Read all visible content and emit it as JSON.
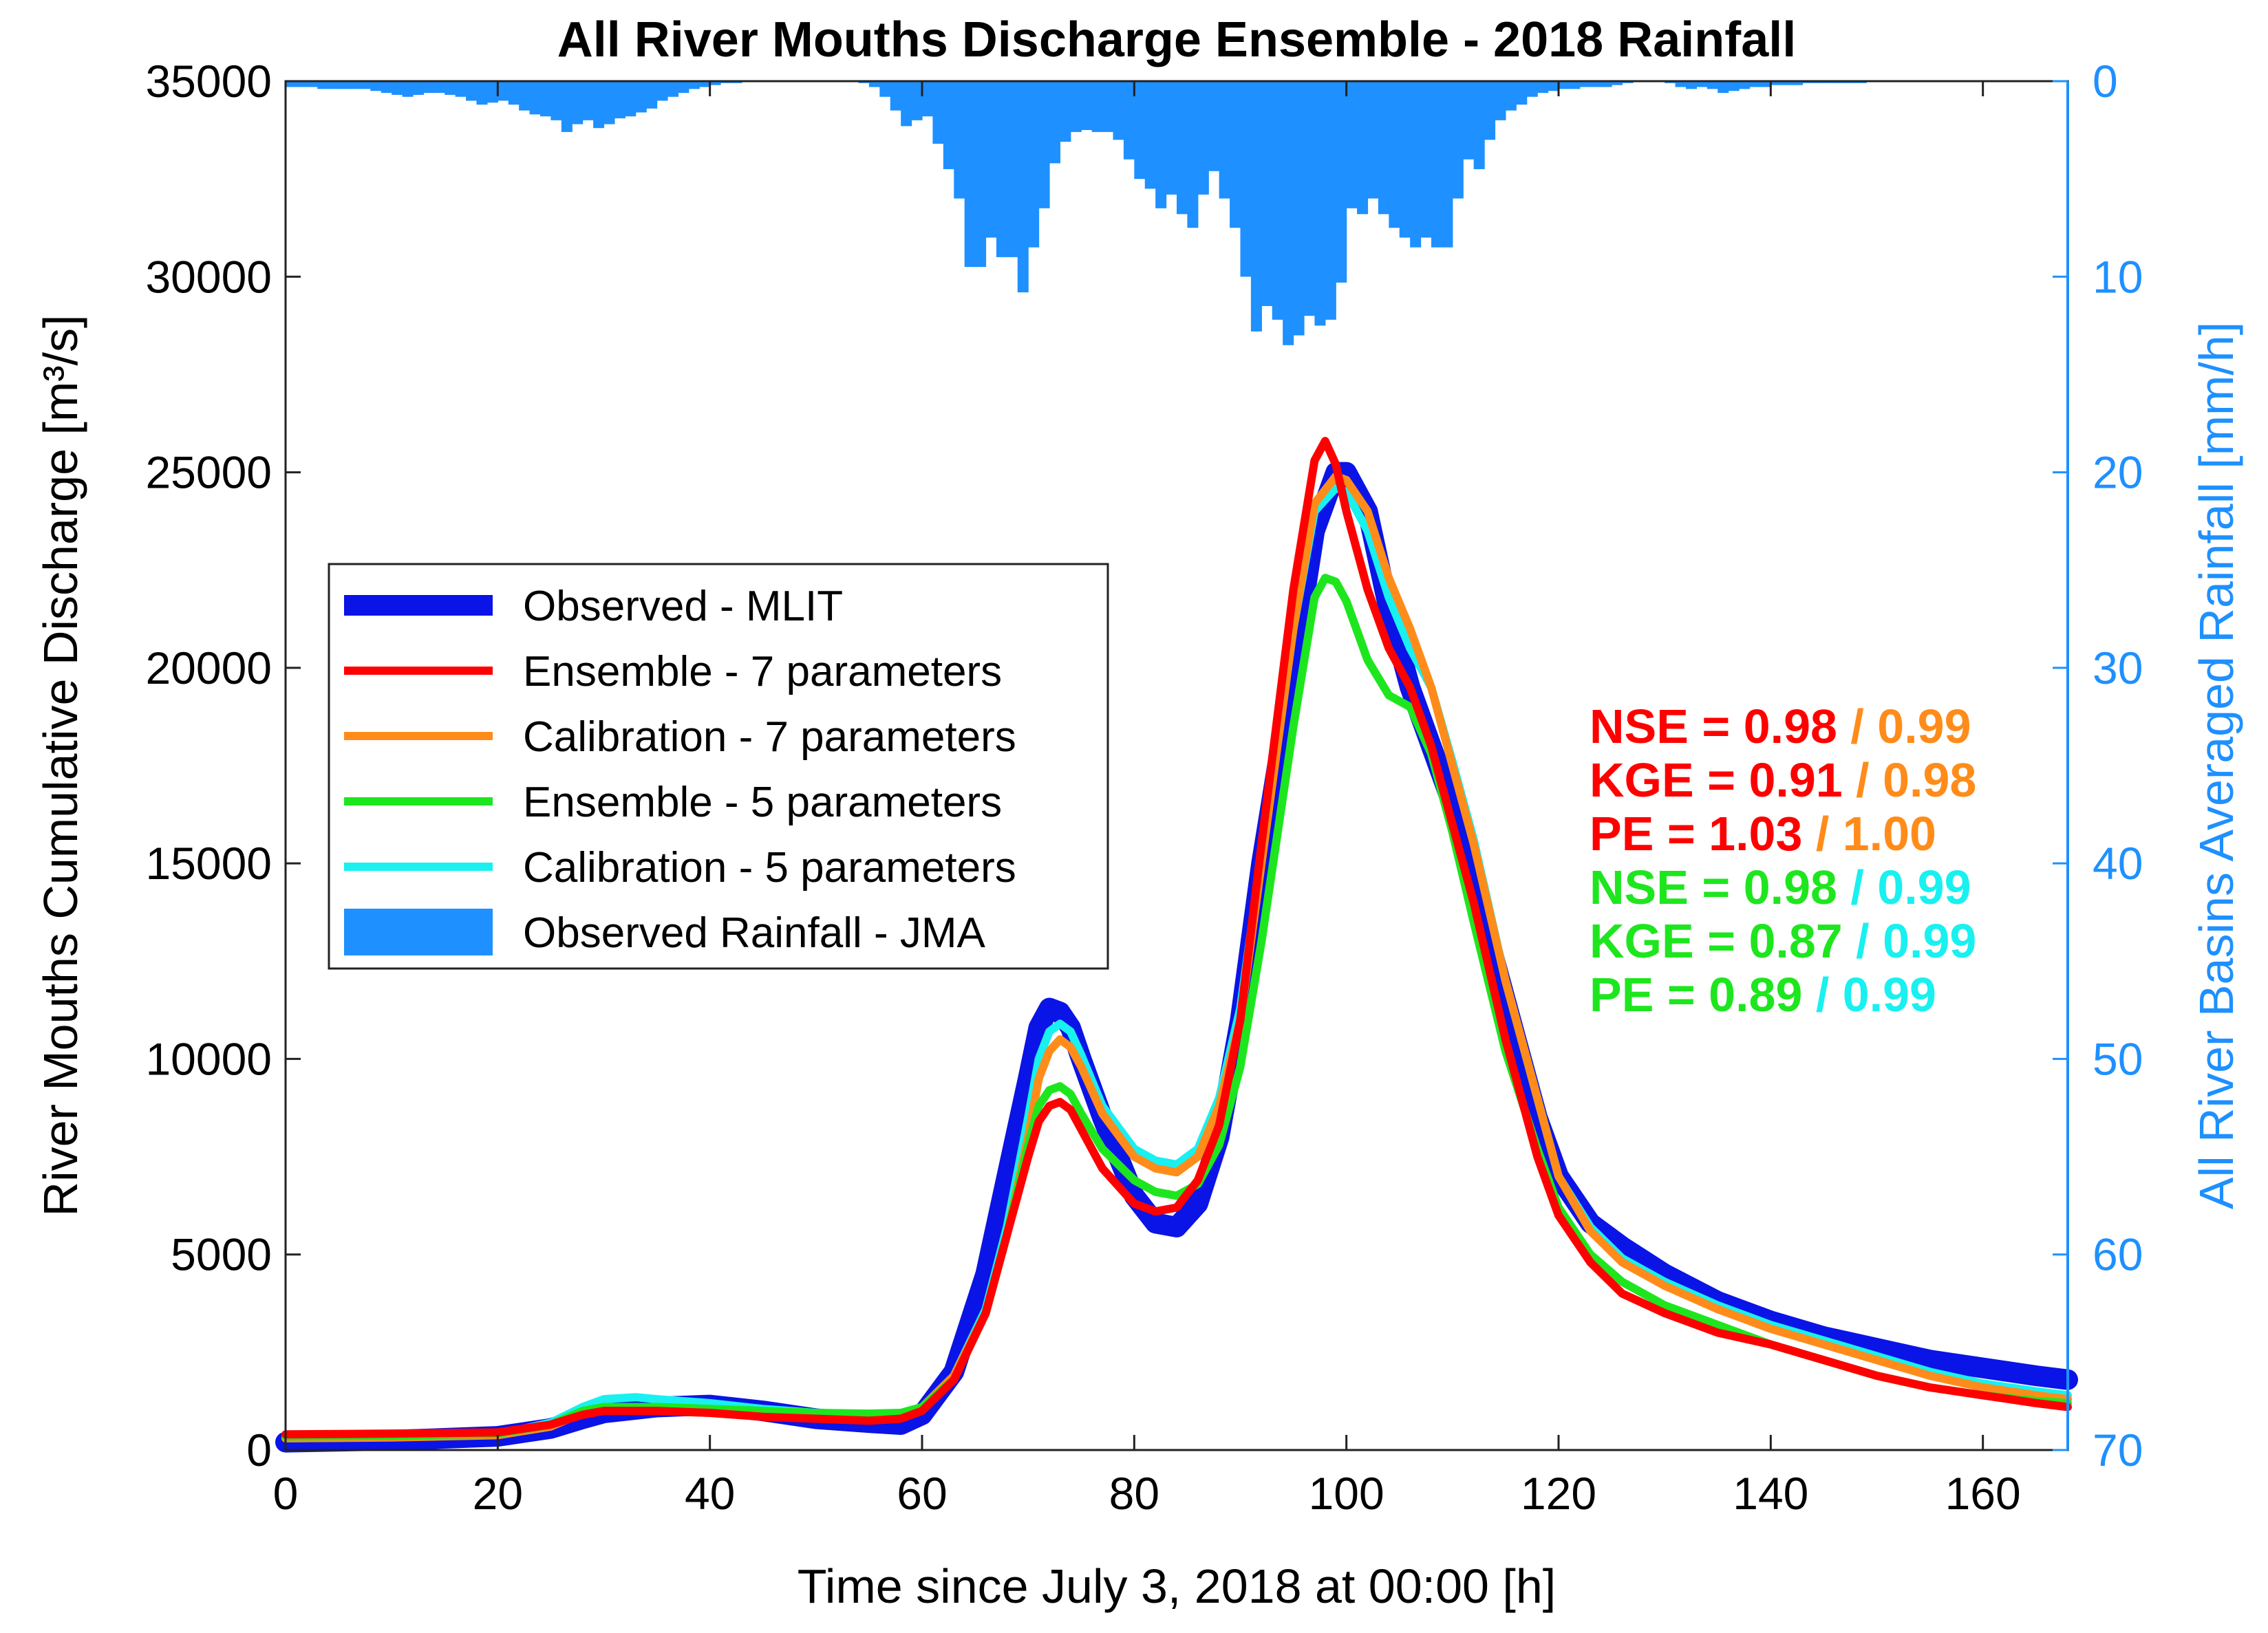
{
  "chart_data": {
    "type": "line",
    "title": "All River Mouths Discharge Ensemble - 2018 Rainfall",
    "xlabel": "Time since July 3, 2018 at 00:00 [h]",
    "ylabel": "River Mouths Cumulative Discharge [m³/s]",
    "ylabel_right": "All River Basins Averaged Rainfall [mm/h]",
    "xlim": [
      0,
      168
    ],
    "ylim": [
      0,
      35000
    ],
    "ylim_right": [
      0,
      70
    ],
    "xticks": [
      "0",
      "20",
      "40",
      "60",
      "80",
      "100",
      "120",
      "140",
      "160"
    ],
    "yticks": [
      "0",
      "5000",
      "10000",
      "15000",
      "20000",
      "25000",
      "30000",
      "35000"
    ],
    "yticks_right": [
      "0",
      "10",
      "20",
      "30",
      "40",
      "50",
      "60",
      "70"
    ],
    "colors": {
      "observed": "#0a14e6",
      "ens7": "#ff0000",
      "cal7": "#ff8c1a",
      "ens5": "#1ee61e",
      "cal5": "#19f0f0",
      "rain": "#1e90ff"
    },
    "series": [
      {
        "name": "Observed - MLIT",
        "key": "observed",
        "x": [
          0,
          10,
          20,
          25,
          28,
          30,
          35,
          40,
          45,
          50,
          55,
          58,
          60,
          63,
          66,
          68,
          70,
          71,
          72,
          73,
          74,
          75,
          77,
          80,
          82,
          84,
          86,
          88,
          90,
          92,
          95,
          97,
          99,
          100,
          102,
          104,
          106,
          108,
          110,
          112,
          115,
          118,
          120,
          123,
          126,
          130,
          135,
          140,
          145,
          150,
          155,
          160,
          165,
          168
        ],
        "values": [
          200,
          250,
          350,
          550,
          800,
          950,
          1100,
          1150,
          1000,
          800,
          700,
          650,
          900,
          2000,
          4500,
          7000,
          9500,
          10800,
          11300,
          11200,
          10800,
          10000,
          8500,
          6500,
          5800,
          5700,
          6300,
          8000,
          11000,
          15000,
          20000,
          23500,
          25000,
          25000,
          24000,
          21500,
          19500,
          18000,
          16500,
          14500,
          11500,
          8500,
          7000,
          5800,
          5200,
          4500,
          3800,
          3300,
          2900,
          2600,
          2300,
          2100,
          1900,
          1800
        ]
      },
      {
        "name": "Ensemble - 7 parameters",
        "key": "ens7",
        "x": [
          0,
          10,
          20,
          25,
          28,
          30,
          35,
          40,
          45,
          50,
          55,
          58,
          60,
          63,
          66,
          68,
          70,
          71,
          72,
          73,
          74,
          75,
          77,
          80,
          82,
          84,
          86,
          88,
          90,
          92,
          95,
          97,
          98,
          99,
          100,
          102,
          104,
          106,
          108,
          110,
          112,
          115,
          118,
          120,
          123,
          126,
          130,
          135,
          140,
          145,
          150,
          155,
          160,
          165,
          168
        ],
        "values": [
          400,
          420,
          450,
          650,
          900,
          1000,
          1000,
          950,
          850,
          800,
          750,
          800,
          1000,
          1800,
          3500,
          5500,
          7500,
          8400,
          8800,
          8900,
          8700,
          8200,
          7200,
          6300,
          6100,
          6200,
          6900,
          8300,
          11000,
          15500,
          22000,
          25300,
          25800,
          25200,
          24000,
          22000,
          20500,
          19500,
          18000,
          16000,
          14000,
          10500,
          7500,
          6000,
          4800,
          4000,
          3500,
          3000,
          2700,
          2300,
          1900,
          1600,
          1400,
          1200,
          1100
        ]
      },
      {
        "name": "Calibration - 7 parameters",
        "key": "cal7",
        "x": [
          0,
          10,
          20,
          25,
          28,
          30,
          35,
          40,
          45,
          50,
          55,
          58,
          60,
          63,
          66,
          68,
          70,
          71,
          72,
          73,
          74,
          75,
          77,
          80,
          82,
          84,
          86,
          88,
          90,
          92,
          95,
          97,
          99,
          100,
          102,
          104,
          106,
          108,
          110,
          112,
          115,
          118,
          120,
          123,
          126,
          130,
          135,
          140,
          145,
          150,
          155,
          160,
          165,
          168
        ],
        "values": [
          300,
          320,
          380,
          600,
          950,
          1050,
          1050,
          1000,
          950,
          900,
          880,
          900,
          1100,
          1900,
          3500,
          5500,
          8000,
          9500,
          10200,
          10500,
          10300,
          9800,
          8600,
          7500,
          7200,
          7100,
          7500,
          8800,
          11000,
          15000,
          21000,
          24200,
          24900,
          24800,
          24000,
          22300,
          21000,
          19500,
          17500,
          15500,
          12000,
          9000,
          7000,
          5600,
          4800,
          4200,
          3600,
          3100,
          2700,
          2300,
          1900,
          1600,
          1400,
          1300
        ]
      },
      {
        "name": "Ensemble - 5 parameters",
        "key": "ens5",
        "x": [
          0,
          10,
          20,
          25,
          28,
          30,
          35,
          40,
          45,
          50,
          55,
          58,
          60,
          63,
          66,
          68,
          70,
          71,
          72,
          73,
          74,
          75,
          77,
          80,
          82,
          84,
          86,
          88,
          90,
          92,
          95,
          97,
          98,
          99,
          100,
          102,
          104,
          106,
          108,
          110,
          112,
          115,
          118,
          120,
          123,
          126,
          130,
          135,
          140,
          145,
          150,
          155,
          160,
          165,
          168
        ],
        "values": [
          350,
          370,
          420,
          650,
          1000,
          1100,
          1100,
          1050,
          1000,
          950,
          930,
          950,
          1100,
          1800,
          3500,
          5500,
          7800,
          8800,
          9200,
          9300,
          9100,
          8600,
          7700,
          6900,
          6600,
          6500,
          6800,
          7800,
          9800,
          13000,
          18500,
          21800,
          22300,
          22200,
          21700,
          20200,
          19300,
          19000,
          17800,
          15800,
          13500,
          10200,
          7700,
          6200,
          5000,
          4300,
          3700,
          3200,
          2700,
          2300,
          1900,
          1600,
          1400,
          1250,
          1200
        ]
      },
      {
        "name": "Calibration - 5 parameters",
        "key": "cal5",
        "x": [
          0,
          10,
          20,
          25,
          28,
          30,
          33,
          35,
          40,
          45,
          50,
          55,
          58,
          60,
          63,
          66,
          68,
          70,
          71,
          72,
          73,
          74,
          75,
          77,
          80,
          82,
          84,
          86,
          88,
          90,
          92,
          95,
          97,
          99,
          100,
          102,
          104,
          106,
          108,
          110,
          112,
          115,
          118,
          120,
          123,
          126,
          130,
          135,
          140,
          145,
          150,
          155,
          160,
          165,
          168
        ],
        "values": [
          300,
          330,
          400,
          700,
          1100,
          1300,
          1350,
          1300,
          1200,
          1050,
          950,
          900,
          900,
          1050,
          1900,
          3600,
          5700,
          8500,
          10000,
          10700,
          10900,
          10700,
          10100,
          8800,
          7700,
          7400,
          7300,
          7700,
          9000,
          11300,
          15200,
          21000,
          24000,
          24600,
          24500,
          23500,
          21800,
          20500,
          19500,
          17600,
          15600,
          12000,
          9000,
          7000,
          5700,
          4900,
          4300,
          3700,
          3200,
          2800,
          2400,
          2000,
          1700,
          1500,
          1400
        ]
      }
    ],
    "rainfall": {
      "name": "Observed Rainfall - JMA",
      "x_start": 0,
      "bin_width": 1,
      "values": [
        0.3,
        0.3,
        0.3,
        0.4,
        0.4,
        0.4,
        0.4,
        0.4,
        0.5,
        0.6,
        0.7,
        0.8,
        0.7,
        0.6,
        0.6,
        0.7,
        0.8,
        1.0,
        1.2,
        1.1,
        1.0,
        1.2,
        1.5,
        1.7,
        1.8,
        2.0,
        2.6,
        2.2,
        2.0,
        2.4,
        2.2,
        1.9,
        1.8,
        1.6,
        1.4,
        1.0,
        0.8,
        0.6,
        0.4,
        0.3,
        0.2,
        0.1,
        0.1,
        0.0,
        0.0,
        0.0,
        0.0,
        0.0,
        0.0,
        0.0,
        0.0,
        0.0,
        0.0,
        0.0,
        0.1,
        0.3,
        0.8,
        1.5,
        2.3,
        2.0,
        1.8,
        3.2,
        4.5,
        6.0,
        9.5,
        9.5,
        8.0,
        9.0,
        9.0,
        10.8,
        8.5,
        6.5,
        4.2,
        3.1,
        2.6,
        2.5,
        2.6,
        2.6,
        3.0,
        4.0,
        5.0,
        5.5,
        6.5,
        5.8,
        6.8,
        7.5,
        5.8,
        4.6,
        6.0,
        7.5,
        10.0,
        12.8,
        11.5,
        12.2,
        13.5,
        13.0,
        12.0,
        12.5,
        12.2,
        10.3,
        6.5,
        6.8,
        6.0,
        6.8,
        7.5,
        8.0,
        8.5,
        8.0,
        8.5,
        8.5,
        6.0,
        4.0,
        4.5,
        3.0,
        2.0,
        1.5,
        1.2,
        0.8,
        0.6,
        0.5,
        0.4,
        0.4,
        0.3,
        0.3,
        0.3,
        0.2,
        0.1,
        0.0,
        0.0,
        0.0,
        0.1,
        0.3,
        0.4,
        0.3,
        0.4,
        0.6,
        0.5,
        0.4,
        0.3,
        0.3,
        0.2,
        0.2,
        0.2,
        0.1,
        0.1,
        0.1,
        0.1,
        0.1,
        0.1,
        0.0,
        0.0,
        0.0,
        0.0,
        0.0,
        0.0,
        0.0,
        0.0,
        0.0,
        0.0,
        0.0,
        0.0,
        0.0,
        0.0,
        0.0,
        0.0,
        0.0,
        0.0,
        0.0,
        0.0,
        0.0
      ]
    },
    "legend": {
      "placement": "upper-left",
      "entries": [
        {
          "label": "Observed - MLIT",
          "key": "observed",
          "style": "thick-line"
        },
        {
          "label": "Ensemble - 7 parameters",
          "key": "ens7",
          "style": "line"
        },
        {
          "label": "Calibration - 7 parameters",
          "key": "cal7",
          "style": "line"
        },
        {
          "label": "Ensemble - 5 parameters",
          "key": "ens5",
          "style": "line"
        },
        {
          "label": "Calibration - 5 parameters",
          "key": "cal5",
          "style": "line"
        },
        {
          "label": "Observed Rainfall - JMA",
          "key": "rain",
          "style": "patch"
        }
      ]
    },
    "annotations": [
      {
        "parts": [
          {
            "text": "NSE = 0.98",
            "key": "ens7"
          },
          {
            "text": " / 0.99",
            "key": "cal7"
          }
        ]
      },
      {
        "parts": [
          {
            "text": "KGE = 0.91",
            "key": "ens7"
          },
          {
            "text": " / 0.98",
            "key": "cal7"
          }
        ]
      },
      {
        "parts": [
          {
            "text": "PE = 1.03",
            "key": "ens7"
          },
          {
            "text": " / 1.00",
            "key": "cal7"
          }
        ]
      },
      {
        "parts": [
          {
            "text": "NSE = 0.98",
            "key": "ens5"
          },
          {
            "text": " / 0.99",
            "key": "cal5"
          }
        ]
      },
      {
        "parts": [
          {
            "text": "KGE = 0.87",
            "key": "ens5"
          },
          {
            "text": " / 0.99",
            "key": "cal5"
          }
        ]
      },
      {
        "parts": [
          {
            "text": "PE = 0.89",
            "key": "ens5"
          },
          {
            "text": " / 0.99",
            "key": "cal5"
          }
        ]
      }
    ]
  }
}
